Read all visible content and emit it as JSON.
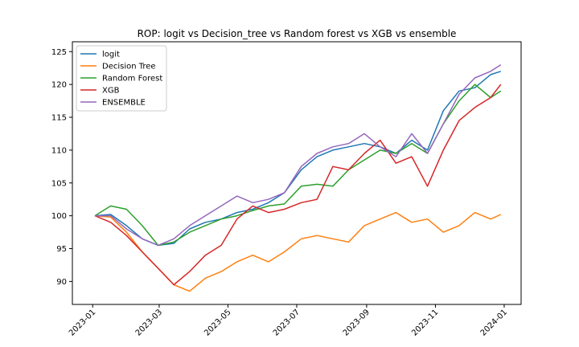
{
  "chart_data": {
    "type": "line",
    "title": "ROP: logit vs Decision_tree vs Random forest vs XGB vs ensemble",
    "xlabel": "",
    "ylabel": "",
    "x_ticks": [
      "2023-01",
      "2023-03",
      "2023-05",
      "2023-07",
      "2023-09",
      "2023-11",
      "2024-01"
    ],
    "y_ticks": [
      90,
      95,
      100,
      105,
      110,
      115,
      120,
      125
    ],
    "xlim": [
      "2022-12-14",
      "2024-01-16"
    ],
    "ylim": [
      86.5,
      126.5
    ],
    "grid": false,
    "legend_position": "top-left",
    "x": [
      "2023-01-03",
      "2023-01-17",
      "2023-01-31",
      "2023-02-14",
      "2023-02-28",
      "2023-03-14",
      "2023-03-28",
      "2023-04-11",
      "2023-04-25",
      "2023-05-09",
      "2023-05-23",
      "2023-06-06",
      "2023-06-20",
      "2023-07-05",
      "2023-07-19",
      "2023-08-02",
      "2023-08-16",
      "2023-08-30",
      "2023-09-13",
      "2023-09-27",
      "2023-10-11",
      "2023-10-25",
      "2023-11-08",
      "2023-11-22",
      "2023-12-06",
      "2023-12-20",
      "2023-12-29"
    ],
    "series": [
      {
        "name": "logit",
        "color": "#1f77b4",
        "values": [
          100.0,
          100.2,
          98.5,
          96.5,
          95.5,
          95.8,
          98.0,
          99.0,
          99.5,
          100.5,
          101.0,
          102.0,
          103.5,
          107.0,
          109.0,
          110.0,
          110.5,
          111.0,
          110.5,
          109.5,
          111.5,
          110.0,
          116.0,
          119.0,
          119.5,
          121.5,
          122.0
        ]
      },
      {
        "name": "Decision Tree",
        "color": "#ff7f0e",
        "values": [
          100.0,
          99.8,
          97.5,
          94.5,
          92.0,
          89.5,
          88.5,
          90.5,
          91.5,
          93.0,
          94.0,
          93.0,
          94.5,
          96.5,
          97.0,
          96.5,
          96.0,
          98.5,
          99.5,
          100.5,
          99.0,
          99.5,
          97.5,
          98.5,
          100.5,
          99.5,
          100.2
        ]
      },
      {
        "name": "Random Forest",
        "color": "#2ca02c",
        "values": [
          100.0,
          101.5,
          101.0,
          98.5,
          95.5,
          96.0,
          97.5,
          98.5,
          99.5,
          100.0,
          100.8,
          101.5,
          101.8,
          104.5,
          104.8,
          104.5,
          107.0,
          108.5,
          110.0,
          109.5,
          111.0,
          109.5,
          114.0,
          117.5,
          120.0,
          118.0,
          119.0
        ]
      },
      {
        "name": "XGB",
        "color": "#d62728",
        "values": [
          100.0,
          99.0,
          97.0,
          94.5,
          92.0,
          89.5,
          91.5,
          94.0,
          95.5,
          99.5,
          101.5,
          100.5,
          101.0,
          102.0,
          102.5,
          107.5,
          107.0,
          109.5,
          111.5,
          108.0,
          109.0,
          104.5,
          110.0,
          114.5,
          116.5,
          118.0,
          120.0
        ]
      },
      {
        "name": "ENSEMBLE",
        "color": "#9467bd",
        "values": [
          100.0,
          100.0,
          98.0,
          96.5,
          95.5,
          96.5,
          98.5,
          100.0,
          101.5,
          103.0,
          102.0,
          102.5,
          103.5,
          107.5,
          109.5,
          110.5,
          111.0,
          112.5,
          110.5,
          109.0,
          112.5,
          109.5,
          114.0,
          118.5,
          121.0,
          122.0,
          123.0
        ]
      }
    ]
  }
}
